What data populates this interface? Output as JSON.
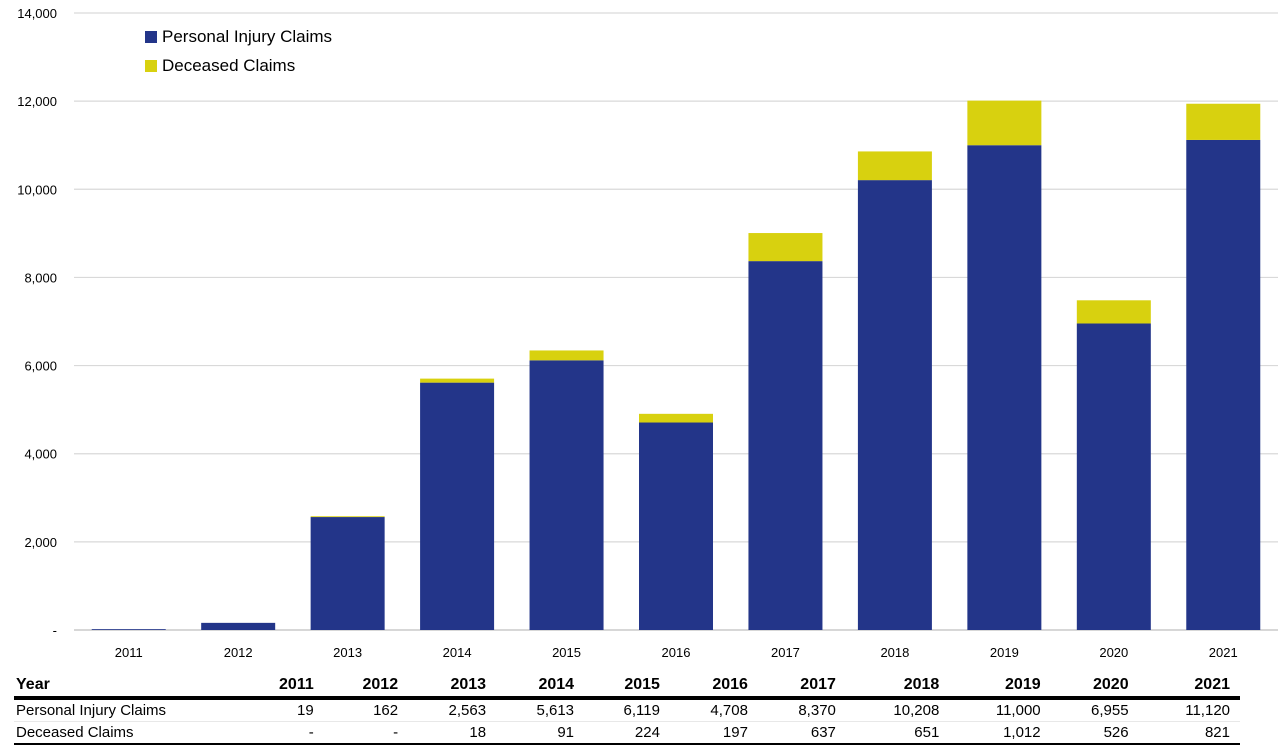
{
  "chart_data": {
    "type": "bar",
    "stacked": true,
    "categories": [
      "2011",
      "2012",
      "2013",
      "2014",
      "2015",
      "2016",
      "2017",
      "2018",
      "2019",
      "2020",
      "2021"
    ],
    "series": [
      {
        "name": "Personal Injury Claims",
        "color": "#233589",
        "values": [
          19,
          162,
          2563,
          5613,
          6119,
          4708,
          8370,
          10208,
          11000,
          6955,
          11120
        ]
      },
      {
        "name": "Deceased Claims",
        "color": "#d8d10f",
        "values": [
          0,
          0,
          18,
          91,
          224,
          197,
          637,
          651,
          1012,
          526,
          821
        ]
      }
    ],
    "ylim": [
      0,
      14000
    ],
    "yticks": [
      0,
      2000,
      4000,
      6000,
      8000,
      10000,
      12000,
      14000
    ],
    "ytick_labels": [
      "-",
      "2,000",
      "4,000",
      "6,000",
      "8,000",
      "10,000",
      "12,000",
      "14,000"
    ],
    "grid": true,
    "legend_position": "top-left"
  },
  "table": {
    "header_label": "Year",
    "years": [
      "2011",
      "2012",
      "2013",
      "2014",
      "2015",
      "2016",
      "2017",
      "2018",
      "2019",
      "2020",
      "2021"
    ],
    "rows": [
      {
        "label": "Personal Injury Claims",
        "values": [
          "19",
          "162",
          "2,563",
          "5,613",
          "6,119",
          "4,708",
          "8,370",
          "10,208",
          "11,000",
          "6,955",
          "11,120"
        ]
      },
      {
        "label": "Deceased Claims",
        "values": [
          "-",
          "-",
          "18",
          "91",
          "224",
          "197",
          "637",
          "651",
          "1,012",
          "526",
          "821"
        ]
      }
    ]
  }
}
